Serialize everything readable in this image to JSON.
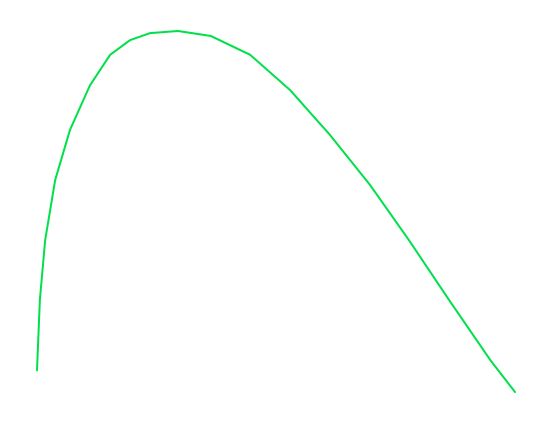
{
  "chart_data": {
    "type": "line",
    "x": [
      0,
      0.6,
      1.7,
      3.8,
      6.9,
      11.1,
      15.3,
      19.5,
      23.6,
      29.5,
      36.4,
      44.6,
      52.9,
      61.3,
      69.7,
      77.8,
      86.2,
      94.8,
      100
    ],
    "series": [
      {
        "color": "#00e04a",
        "values": [
          6,
          25.5,
          42,
          58.7,
          72.6,
          85,
          93.4,
          97.5,
          99.4,
          100,
          98.6,
          93.4,
          83.7,
          71.2,
          57.3,
          42.1,
          25.5,
          8.9,
          0
        ]
      }
    ],
    "xlim": [
      0,
      100
    ],
    "ylim": [
      0,
      100
    ],
    "grid": false
  }
}
